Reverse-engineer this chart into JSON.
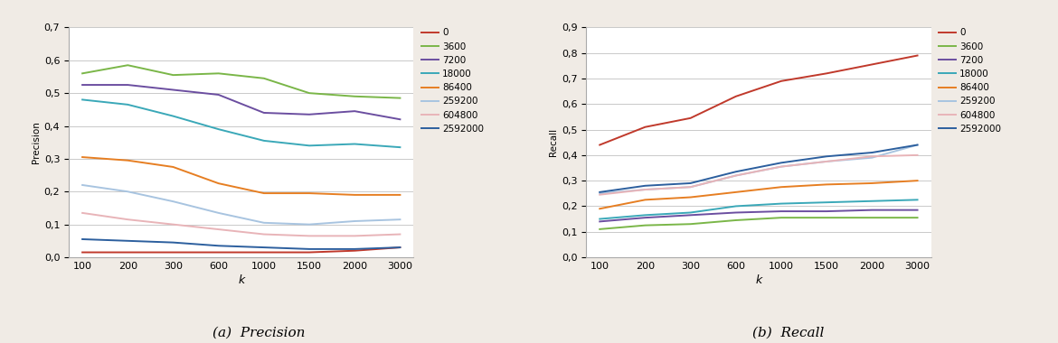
{
  "k_values": [
    100,
    200,
    300,
    600,
    1000,
    1500,
    2000,
    3000
  ],
  "k_labels": [
    "100",
    "200",
    "300",
    "600",
    "1000",
    "1500",
    "2000",
    "3000"
  ],
  "precision": {
    "0": [
      0.015,
      0.015,
      0.015,
      0.015,
      0.015,
      0.015,
      0.02,
      0.03
    ],
    "3600": [
      0.56,
      0.585,
      0.555,
      0.56,
      0.545,
      0.5,
      0.49,
      0.485
    ],
    "7200": [
      0.525,
      0.525,
      0.51,
      0.495,
      0.44,
      0.435,
      0.445,
      0.42
    ],
    "18000": [
      0.48,
      0.465,
      0.43,
      0.39,
      0.355,
      0.34,
      0.345,
      0.335
    ],
    "86400": [
      0.305,
      0.295,
      0.275,
      0.225,
      0.195,
      0.195,
      0.19,
      0.19
    ],
    "259200": [
      0.22,
      0.2,
      0.17,
      0.135,
      0.105,
      0.1,
      0.11,
      0.115
    ],
    "604800": [
      0.135,
      0.115,
      0.1,
      0.085,
      0.07,
      0.065,
      0.065,
      0.07
    ],
    "2592000": [
      0.055,
      0.05,
      0.045,
      0.035,
      0.03,
      0.025,
      0.025,
      0.03
    ]
  },
  "recall": {
    "0": [
      0.44,
      0.51,
      0.545,
      0.63,
      0.69,
      0.72,
      0.755,
      0.79
    ],
    "3600": [
      0.11,
      0.125,
      0.13,
      0.145,
      0.155,
      0.155,
      0.155,
      0.155
    ],
    "7200": [
      0.14,
      0.155,
      0.165,
      0.175,
      0.18,
      0.18,
      0.185,
      0.185
    ],
    "18000": [
      0.15,
      0.165,
      0.175,
      0.2,
      0.21,
      0.215,
      0.22,
      0.225
    ],
    "86400": [
      0.19,
      0.225,
      0.235,
      0.255,
      0.275,
      0.285,
      0.29,
      0.3
    ],
    "259200": [
      0.25,
      0.265,
      0.275,
      0.32,
      0.355,
      0.375,
      0.39,
      0.44
    ],
    "604800": [
      0.245,
      0.265,
      0.275,
      0.32,
      0.355,
      0.375,
      0.395,
      0.4
    ],
    "2592000": [
      0.255,
      0.28,
      0.29,
      0.335,
      0.37,
      0.395,
      0.41,
      0.44
    ]
  },
  "series_colors": {
    "0": "#c0392b",
    "3600": "#7ab648",
    "7200": "#6b4ea0",
    "18000": "#3aa8b8",
    "86400": "#e67e22",
    "259200": "#a8c4e0",
    "604800": "#e8b4b8",
    "2592000": "#2c5f9e"
  },
  "precision_ylim": [
    0,
    0.7
  ],
  "precision_yticks": [
    0,
    0.1,
    0.2,
    0.3,
    0.4,
    0.5,
    0.6,
    0.7
  ],
  "recall_ylim": [
    0,
    0.9
  ],
  "recall_yticks": [
    0,
    0.1,
    0.2,
    0.3,
    0.4,
    0.5,
    0.6,
    0.7,
    0.8,
    0.9
  ],
  "xlabel": "k",
  "ylabel_precision": "Precision",
  "ylabel_recall": "Recall",
  "caption_a": "(a)  Precision",
  "caption_b": "(b)  Recall",
  "legend_order": [
    "0",
    "3600",
    "7200",
    "18000",
    "86400",
    "259200",
    "604800",
    "2592000"
  ],
  "bg_color": "#f0ebe5",
  "plot_bg_color": "#ffffff",
  "line_width": 1.4,
  "grid_color": "#c0c0c0",
  "spine_color": "#aaaaaa"
}
